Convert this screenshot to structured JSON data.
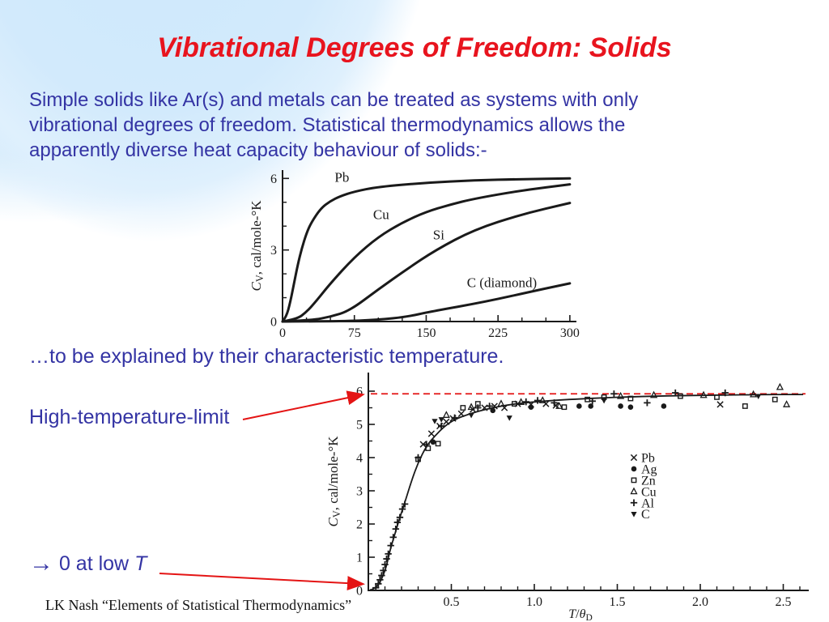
{
  "slide": {
    "title": "Vibrational Degrees of Freedom: Solids",
    "body_lines": [
      "Simple solids like Ar(s) and metals can be treated as systems with only",
      "vibrational degrees of freedom.  Statistical thermodynamics allows the",
      "apparently diverse heat capacity behaviour of solids:-"
    ],
    "mid_text": "…to be explained by their characteristic temperature.",
    "high_t_label": "High-temperature-limit",
    "low_t_arrow": "→",
    "low_t_text": " 0 at low ",
    "low_t_var": "T",
    "footer": "LK Nash “Elements of Statistical Thermodynamics”",
    "colors": {
      "title_red": "#e8141e",
      "body_blue": "#3434a4",
      "annotation_red": "#e41414",
      "chart_ink": "#1a1a1a",
      "background_blob": "#cde8fb"
    }
  },
  "chart_data": [
    {
      "type": "line",
      "title": "Heat capacity of solids vs absolute temperature",
      "ylabel_segments": [
        {
          "text": "C",
          "style": "italic"
        },
        {
          "text": "V",
          "style": "sub"
        },
        {
          "text": ", cal/mole-°K",
          "style": "normal"
        }
      ],
      "xlabel_segments": [],
      "xlim": [
        0,
        307
      ],
      "ylim": [
        0,
        6.35
      ],
      "xticks_major": [
        0,
        75,
        150,
        225,
        300
      ],
      "xticks_minor_step": 25,
      "yticks_major": [
        0,
        3,
        6
      ],
      "yticks_minor": [
        1,
        2,
        4,
        5
      ],
      "grid": false,
      "series": [
        {
          "name": "Pb",
          "label_x": 62,
          "label_y": 5.85,
          "x": [
            0,
            4,
            8,
            12,
            16,
            20,
            25,
            30,
            40,
            50,
            60,
            75,
            100,
            150,
            200,
            250,
            300
          ],
          "y": [
            0,
            0.2,
            0.8,
            1.6,
            2.4,
            3.05,
            3.7,
            4.15,
            4.75,
            5.05,
            5.25,
            5.45,
            5.65,
            5.82,
            5.92,
            5.97,
            6.0
          ]
        },
        {
          "name": "Cu",
          "label_x": 103,
          "label_y": 4.3,
          "x": [
            0,
            15,
            25,
            35,
            50,
            75,
            100,
            125,
            150,
            175,
            200,
            250,
            300
          ],
          "y": [
            0,
            0.1,
            0.4,
            0.85,
            1.6,
            2.7,
            3.55,
            4.15,
            4.6,
            4.9,
            5.15,
            5.5,
            5.75
          ]
        },
        {
          "name": "Si",
          "label_x": 163,
          "label_y": 3.45,
          "x": [
            0,
            30,
            50,
            70,
            100,
            130,
            160,
            200,
            250,
            300
          ],
          "y": [
            0,
            0.05,
            0.2,
            0.45,
            1.35,
            2.2,
            3.0,
            3.85,
            4.5,
            4.97
          ]
        },
        {
          "name": "C  (diamond)",
          "label_x": 229,
          "label_y": 1.45,
          "x": [
            0,
            60,
            100,
            130,
            155,
            211,
            268,
            300
          ],
          "y": [
            0,
            0.01,
            0.07,
            0.2,
            0.42,
            0.82,
            1.33,
            1.6
          ]
        }
      ]
    },
    {
      "type": "scatter",
      "title": "Universal Debye heat-capacity curve vs reduced temperature",
      "ylabel_segments": [
        {
          "text": "C",
          "style": "italic"
        },
        {
          "text": "V",
          "style": "sub"
        },
        {
          "text": ", cal/mole-°K",
          "style": "normal"
        }
      ],
      "xlabel_segments": [
        {
          "text": "T",
          "style": "italic"
        },
        {
          "text": "/",
          "style": "normal"
        },
        {
          "text": "θ",
          "style": "italic"
        },
        {
          "text": "D",
          "style": "sub"
        }
      ],
      "xlim": [
        0,
        2.65
      ],
      "ylim": [
        0,
        6.55
      ],
      "xticks_major": [
        0.5,
        1.0,
        1.5,
        2.0,
        2.5
      ],
      "xticks_minor_step": 0.1,
      "yticks_major": [
        0,
        1,
        2,
        3,
        4,
        5,
        6
      ],
      "yticks_minor_step": 0.5,
      "grid": false,
      "high_temperature_limit_y": 5.92,
      "curve": {
        "x": [
          0.02,
          0.06,
          0.09,
          0.11,
          0.13,
          0.16,
          0.19,
          0.22,
          0.26,
          0.3,
          0.35,
          0.4,
          0.46,
          0.52,
          0.6,
          0.7,
          0.85,
          1.0,
          1.2,
          1.5,
          1.8,
          2.1,
          2.4,
          2.62
        ],
        "y": [
          0.01,
          0.15,
          0.45,
          0.75,
          1.2,
          1.7,
          2.2,
          2.65,
          3.3,
          3.85,
          4.35,
          4.65,
          4.95,
          5.15,
          5.3,
          5.45,
          5.6,
          5.68,
          5.75,
          5.82,
          5.86,
          5.88,
          5.9,
          5.9
        ]
      },
      "series": [
        {
          "name": "Pb",
          "marker": "x",
          "points": [
            [
              0.33,
              4.4
            ],
            [
              0.38,
              4.72
            ],
            [
              0.43,
              4.95
            ],
            [
              0.47,
              5.08
            ],
            [
              0.51,
              5.18
            ],
            [
              0.56,
              5.32
            ],
            [
              0.63,
              5.45
            ],
            [
              0.7,
              5.5
            ],
            [
              0.76,
              5.55
            ],
            [
              0.82,
              5.5
            ],
            [
              0.9,
              5.62
            ],
            [
              0.98,
              5.6
            ],
            [
              1.07,
              5.62
            ],
            [
              1.13,
              5.57
            ],
            [
              2.12,
              5.6
            ]
          ]
        },
        {
          "name": "Ag",
          "marker": "dot",
          "points": [
            [
              0.39,
              4.47
            ],
            [
              0.75,
              5.42
            ],
            [
              0.98,
              5.52
            ],
            [
              1.27,
              5.55
            ],
            [
              1.34,
              5.55
            ],
            [
              1.52,
              5.55
            ],
            [
              1.58,
              5.52
            ],
            [
              1.78,
              5.55
            ]
          ]
        },
        {
          "name": "Zn",
          "marker": "square",
          "points": [
            [
              0.3,
              3.95
            ],
            [
              0.36,
              4.28
            ],
            [
              0.42,
              4.42
            ],
            [
              0.57,
              5.5
            ],
            [
              0.66,
              5.62
            ],
            [
              0.88,
              5.62
            ],
            [
              1.18,
              5.52
            ],
            [
              1.32,
              5.75
            ],
            [
              1.42,
              5.82
            ],
            [
              1.58,
              5.78
            ],
            [
              1.88,
              5.85
            ],
            [
              2.1,
              5.82
            ],
            [
              2.27,
              5.55
            ],
            [
              2.45,
              5.75
            ]
          ]
        },
        {
          "name": "Cu",
          "marker": "triangle",
          "points": [
            [
              0.47,
              5.28
            ],
            [
              0.62,
              5.52
            ],
            [
              0.8,
              5.62
            ],
            [
              0.92,
              5.67
            ],
            [
              1.05,
              5.72
            ],
            [
              1.15,
              5.55
            ],
            [
              1.52,
              5.85
            ],
            [
              1.72,
              5.88
            ],
            [
              2.02,
              5.88
            ],
            [
              2.32,
              5.9
            ],
            [
              2.48,
              6.12
            ],
            [
              2.52,
              5.6
            ]
          ]
        },
        {
          "name": "Al",
          "marker": "plus",
          "points": [
            [
              0.045,
              0.08
            ],
            [
              0.06,
              0.2
            ],
            [
              0.07,
              0.32
            ],
            [
              0.08,
              0.45
            ],
            [
              0.09,
              0.6
            ],
            [
              0.1,
              0.78
            ],
            [
              0.11,
              0.95
            ],
            [
              0.12,
              1.1
            ],
            [
              0.135,
              1.35
            ],
            [
              0.15,
              1.6
            ],
            [
              0.165,
              1.85
            ],
            [
              0.175,
              2.05
            ],
            [
              0.19,
              2.2
            ],
            [
              0.205,
              2.45
            ],
            [
              0.22,
              2.6
            ],
            [
              0.3,
              4.0
            ],
            [
              0.35,
              4.4
            ],
            [
              0.44,
              4.95
            ],
            [
              0.52,
              5.2
            ],
            [
              0.66,
              5.5
            ],
            [
              0.73,
              5.55
            ],
            [
              0.95,
              5.68
            ],
            [
              1.02,
              5.72
            ],
            [
              1.12,
              5.65
            ],
            [
              1.35,
              5.7
            ],
            [
              1.48,
              5.92
            ],
            [
              1.68,
              5.65
            ],
            [
              1.85,
              5.95
            ],
            [
              2.15,
              5.95
            ]
          ]
        },
        {
          "name": "C",
          "marker": "triangle-down",
          "points": [
            [
              0.4,
              5.1
            ],
            [
              0.44,
              5.15
            ],
            [
              0.62,
              5.28
            ],
            [
              0.85,
              5.2
            ],
            [
              1.42,
              5.72
            ],
            [
              2.35,
              5.85
            ]
          ]
        }
      ],
      "legend": {
        "x": 1.6,
        "y_start": 4.0,
        "y_step": 0.34,
        "position": "inside-right"
      }
    }
  ]
}
